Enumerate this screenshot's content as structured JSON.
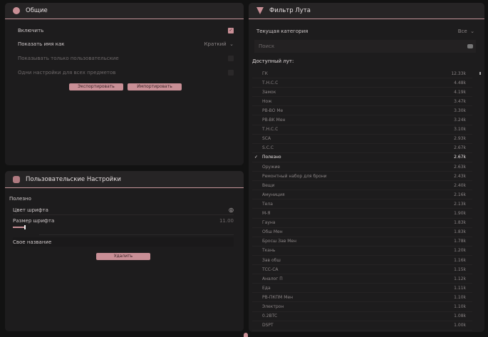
{
  "general": {
    "title": "Общие",
    "enable_label": "Включить",
    "enable_checked": true,
    "show_name_label": "Показать имя как",
    "show_name_value": "Краткий",
    "custom_only_label": "Показывать только пользовательские",
    "same_settings_label": "Одни настройки для всех предметов",
    "export_label": "Экспортировать",
    "import_label": "Импортировать"
  },
  "custom": {
    "title": "Пользовательские Настройки",
    "item_label": "Полезно",
    "font_color_label": "Цвет шрифта",
    "font_size_label": "Размер шрифта",
    "font_size_value": "11.00",
    "font_size_fraction": 0.1,
    "custom_name_label": "Свое название",
    "delete_label": "Удалить"
  },
  "loot": {
    "title": "Фильтр Лута",
    "category_label": "Текущая категория",
    "category_value": "Все",
    "search_placeholder": "Поиск",
    "available_label": "Доступный лут:",
    "items": [
      {
        "name": "ГК",
        "value": "12.33k"
      },
      {
        "name": "Т.Н.С.С",
        "value": "4.48k"
      },
      {
        "name": "Замок",
        "value": "4.19k"
      },
      {
        "name": "Нож",
        "value": "3.47k"
      },
      {
        "name": "PB-BO Me",
        "value": "3.30k"
      },
      {
        "name": "PB-BK Мен",
        "value": "3.24k"
      },
      {
        "name": "Т.Н.С.С",
        "value": "3.10k"
      },
      {
        "name": "SCA",
        "value": "2.93k"
      },
      {
        "name": "S.С.С",
        "value": "2.67k"
      },
      {
        "name": "Полезно",
        "value": "2.67k",
        "checked": true
      },
      {
        "name": "Оружие",
        "value": "2.63k"
      },
      {
        "name": "Ремонтный набор для брони",
        "value": "2.43k"
      },
      {
        "name": "Вещи",
        "value": "2.40k"
      },
      {
        "name": "Амуниция",
        "value": "2.16k"
      },
      {
        "name": "Тела",
        "value": "2.13k"
      },
      {
        "name": "М-Я",
        "value": "1.90k"
      },
      {
        "name": "Гауна",
        "value": "1.83k"
      },
      {
        "name": "Обш Мен",
        "value": "1.83k"
      },
      {
        "name": "Бросш Зав Мен",
        "value": "1.78k"
      },
      {
        "name": "Ткань",
        "value": "1.20k"
      },
      {
        "name": "Зав обш",
        "value": "1.16k"
      },
      {
        "name": "ТСС-СА",
        "value": "1.15k"
      },
      {
        "name": "Аналог П",
        "value": "1.12k"
      },
      {
        "name": "Еда",
        "value": "1.11k"
      },
      {
        "name": "PB-ПКПМ Мен",
        "value": "1.10k"
      },
      {
        "name": "Электрон",
        "value": "1.10k"
      },
      {
        "name": "0.2BTC",
        "value": "1.08k"
      },
      {
        "name": "DSPT",
        "value": "1.00k"
      }
    ]
  },
  "colors": {
    "accent": "#c98f96",
    "panel": "#1d1c1d",
    "background": "#121212"
  }
}
